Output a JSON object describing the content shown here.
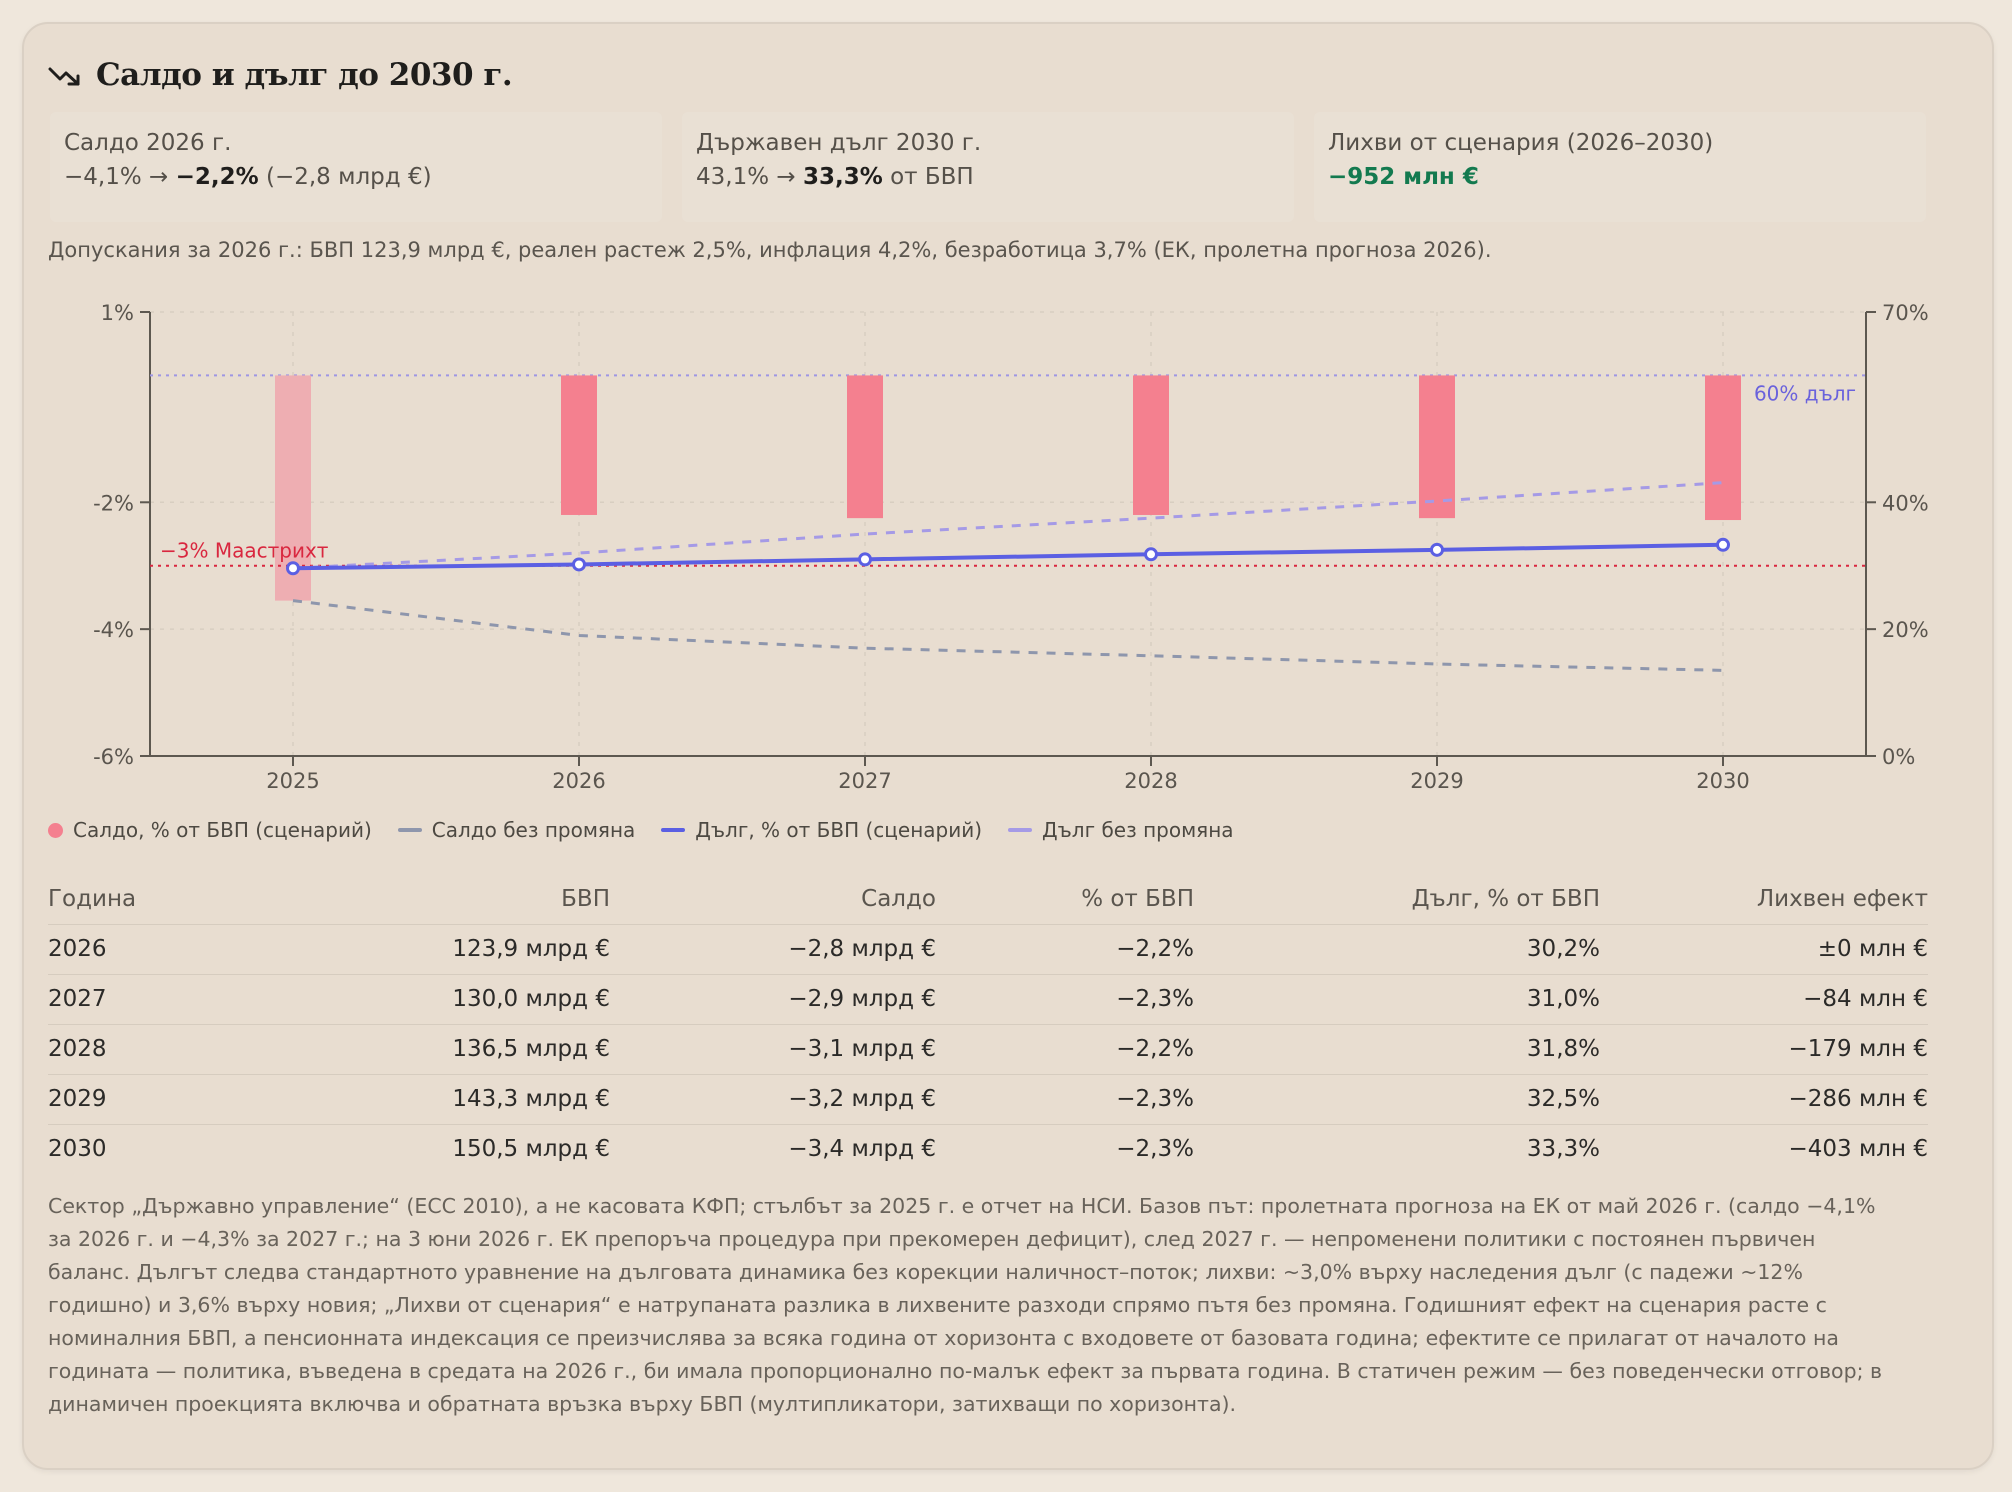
{
  "title": "Салдо и дълг до 2030 г.",
  "kpis": [
    {
      "label": "Салдо 2026 г.",
      "pre": "−4,1% → ",
      "bold": "−2,2%",
      "post": " (−2,8 млрд €)"
    },
    {
      "label": "Държавен дълг 2030 г.",
      "pre": "43,1% → ",
      "bold": "33,3%",
      "post": " от БВП"
    },
    {
      "label": "Лихви от сценария (2026–2030)",
      "pre": "",
      "green": "−952 млн €",
      "post": ""
    }
  ],
  "assumptions": "Допускания за 2026 г.: БВП 123,9 млрд €, реален растеж 2,5%, инфлация 4,2%, безработица 3,7% (ЕК, пролетна прогноза 2026).",
  "colors": {
    "balance_bar": "#f4808f",
    "balance_bar_actual": "#eeaeb2",
    "balance_baseline": "#8e96ac",
    "debt_scenario": "#5b5fe3",
    "debt_baseline": "#a59ae6",
    "maastricht": "#d9273f",
    "debt_ref": "#9e96e3"
  },
  "chart_data": {
    "type": "bar+line",
    "x": [
      "2025",
      "2026",
      "2027",
      "2028",
      "2029",
      "2030"
    ],
    "y_left": {
      "min": -6,
      "max": 1,
      "ticks": [
        "1%",
        "-2%",
        "-4%",
        "-6%"
      ],
      "tick_values": [
        1,
        -2,
        -4,
        -6
      ]
    },
    "y_right": {
      "min": 0,
      "max": 70,
      "ticks": [
        "70%",
        "40%",
        "20%",
        "0%"
      ],
      "tick_values": [
        70,
        40,
        20,
        0
      ]
    },
    "series": [
      {
        "name": "Салдо, % от БВП (сценарий)",
        "axis": "left",
        "kind": "bar",
        "values": [
          -3.55,
          -2.2,
          -2.25,
          -2.2,
          -2.25,
          -2.28
        ]
      },
      {
        "name": "Салдо без промяна",
        "axis": "left",
        "kind": "dashed-line",
        "values": [
          -3.55,
          -4.1,
          -4.3,
          -4.42,
          -4.55,
          -4.65
        ]
      },
      {
        "name": "Дълг, % от БВП (сценарий)",
        "axis": "right",
        "kind": "line-markers",
        "values": [
          29.6,
          30.2,
          31.0,
          31.8,
          32.5,
          33.3
        ]
      },
      {
        "name": "Дълг без промяна",
        "axis": "right",
        "kind": "dashed-line",
        "values": [
          29.6,
          32.0,
          35.0,
          37.5,
          40.2,
          43.1
        ]
      }
    ],
    "reference_lines": [
      {
        "label": "−3% Маастрихт",
        "axis": "left",
        "value": -3
      },
      {
        "label": "60% дълг",
        "axis": "right",
        "value": 60
      }
    ]
  },
  "legend": [
    {
      "label": "Салдо, % от БВП (сценарий)",
      "type": "dot"
    },
    {
      "label": "Салдо без промяна",
      "type": "line-gray"
    },
    {
      "label": "Дълг, % от БВП (сценарий)",
      "type": "line-blue"
    },
    {
      "label": "Дълг без промяна",
      "type": "line-lilac"
    }
  ],
  "table": {
    "headers": [
      "Година",
      "БВП",
      "Салдо",
      "% от БВП",
      "Дълг, % от БВП",
      "Лихвен ефект"
    ],
    "rows": [
      [
        "2026",
        "123,9 млрд €",
        "−2,8 млрд €",
        "−2,2%",
        "30,2%",
        "±0 млн €"
      ],
      [
        "2027",
        "130,0 млрд €",
        "−2,9 млрд €",
        "−2,3%",
        "31,0%",
        "−84 млн €"
      ],
      [
        "2028",
        "136,5 млрд €",
        "−3,1 млрд €",
        "−2,2%",
        "31,8%",
        "−179 млн €"
      ],
      [
        "2029",
        "143,3 млрд €",
        "−3,2 млрд €",
        "−2,3%",
        "32,5%",
        "−286 млн €"
      ],
      [
        "2030",
        "150,5 млрд €",
        "−3,4 млрд €",
        "−2,3%",
        "33,3%",
        "−403 млн €"
      ]
    ]
  },
  "note": "Сектор „Държавно управление“ (ЕСС 2010), а не касовата КФП; стълбът за 2025 г. е отчет на НСИ. Базов път: пролетната прогноза на ЕК от май 2026 г. (салдо −4,1% за 2026 г. и −4,3% за 2027 г.; на 3 юни 2026 г. ЕК препоръча процедура при прекомерен дефицит), след 2027 г. — непроменени политики с постоянен първичен баланс. Дългът следва стандартното уравнение на дълговата динамика без корекции наличност–поток; лихви: ~3,0% върху наследения дълг (с падежи ~12% годишно) и 3,6% върху новия; „Лихви от сценария“ е натрупаната разлика в лихвените разходи спрямо пътя без промяна. Годишният ефект на сценария расте с номиналния БВП, а пенсионната индексация се преизчислява за всяка година от хоризонта с входовете от базовата година; ефектите се прилагат от началото на годината — политика, въведена в средата на 2026 г., би имала пропорционално по-малък ефект за първата година. В статичен режим — без поведенчески отговор; в динамичен проекцията включва и обратната връзка върху БВП (мултипликатори, затихващи по хоризонта)."
}
